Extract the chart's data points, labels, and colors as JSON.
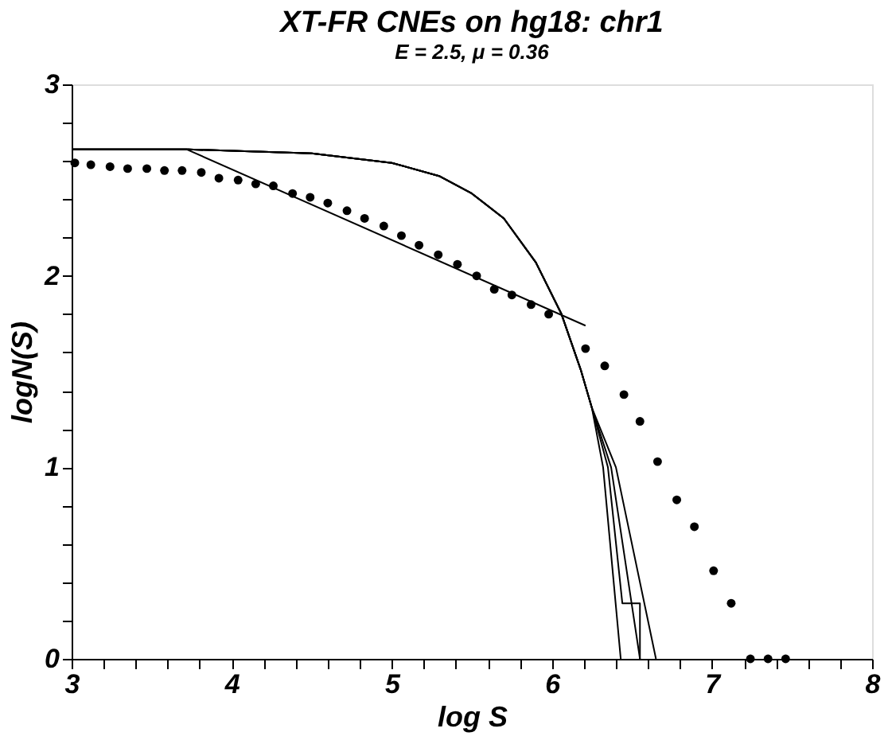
{
  "chart_data": {
    "type": "line",
    "title": "XT-FR CNEs on hg18: chr1",
    "subtitle": "E = 2.5, μ = 0.36",
    "xlabel": "log S",
    "ylabel": "logN(S)",
    "xlim": [
      3,
      8
    ],
    "ylim": [
      0,
      3
    ],
    "xticks": [
      3,
      {
        "value": 3.2,
        "label": null
      },
      {
        "value": 3.4,
        "label": null
      },
      {
        "value": 3.6,
        "label": null
      },
      {
        "value": 3.8,
        "label": null
      },
      4,
      {
        "value": 4.2,
        "label": null
      },
      {
        "value": 4.4,
        "label": null
      },
      {
        "value": 4.6,
        "label": null
      },
      {
        "value": 4.8,
        "label": null
      },
      5,
      {
        "value": 5.2,
        "label": null
      },
      {
        "value": 5.4,
        "label": null
      },
      {
        "value": 5.6,
        "label": null
      },
      {
        "value": 5.8,
        "label": null
      },
      6,
      {
        "value": 6.2,
        "label": null
      },
      {
        "value": 6.4,
        "label": null
      },
      {
        "value": 6.6,
        "label": null
      },
      {
        "value": 6.8,
        "label": null
      },
      7,
      {
        "value": 7.2,
        "label": null
      },
      {
        "value": 7.4,
        "label": null
      },
      {
        "value": 7.6,
        "label": null
      },
      {
        "value": 7.8,
        "label": null
      },
      8
    ],
    "yticks": [
      0,
      {
        "value": 0.2,
        "label": null
      },
      {
        "value": 0.4,
        "label": null
      },
      {
        "value": 0.6,
        "label": null
      },
      {
        "value": 0.8,
        "label": null
      },
      1,
      {
        "value": 1.2,
        "label": null
      },
      {
        "value": 1.4,
        "label": null
      },
      {
        "value": 1.6,
        "label": null
      },
      {
        "value": 1.8,
        "label": null
      },
      2,
      {
        "value": 2.2,
        "label": null
      },
      {
        "value": 2.4,
        "label": null
      },
      {
        "value": 2.6,
        "label": null
      },
      {
        "value": 2.8,
        "label": null
      },
      3
    ],
    "grid": false,
    "series": [
      {
        "type": "scatter",
        "marker": "circle",
        "color": "#000000",
        "x": [
          3.02,
          3.12,
          3.24,
          3.35,
          3.47,
          3.58,
          3.69,
          3.81,
          3.92,
          4.04,
          4.15,
          4.26,
          4.38,
          4.49,
          4.6,
          4.72,
          4.83,
          4.95,
          5.06,
          5.17,
          5.29,
          5.41,
          5.53,
          5.64,
          5.75,
          5.87,
          5.98,
          6.21,
          6.33,
          6.45,
          6.55,
          6.66,
          6.78,
          6.89,
          7.01,
          7.12,
          7.24,
          7.35,
          7.46
        ],
        "values": [
          2.59,
          2.58,
          2.57,
          2.56,
          2.56,
          2.55,
          2.55,
          2.54,
          2.51,
          2.5,
          2.48,
          2.47,
          2.43,
          2.41,
          2.38,
          2.34,
          2.3,
          2.26,
          2.21,
          2.16,
          2.11,
          2.06,
          2.0,
          1.93,
          1.9,
          1.85,
          1.8,
          1.62,
          1.53,
          1.38,
          1.24,
          1.03,
          0.83,
          0.69,
          0.46,
          0.29,
          0,
          0,
          0
        ]
      },
      {
        "color": "#000000",
        "x": [
          3.0,
          3.72,
          6.21
        ],
        "values": [
          2.66,
          2.66,
          1.74
        ]
      },
      {
        "color": "#000000",
        "x": [
          3.0,
          3.73,
          4.5,
          5.0,
          5.3,
          5.5,
          5.7,
          5.9,
          6.06,
          6.18,
          6.25,
          6.32,
          6.43
        ],
        "values": [
          2.66,
          2.66,
          2.64,
          2.59,
          2.52,
          2.43,
          2.3,
          2.07,
          1.8,
          1.51,
          1.31,
          1.0,
          0
        ]
      },
      {
        "color": "#000000",
        "x": [
          3.0,
          3.73,
          4.5,
          5.0,
          5.3,
          5.5,
          5.7,
          5.9,
          6.06,
          6.18,
          6.25,
          6.35,
          6.44,
          6.55,
          6.55
        ],
        "values": [
          2.66,
          2.66,
          2.64,
          2.59,
          2.52,
          2.43,
          2.3,
          2.07,
          1.8,
          1.51,
          1.31,
          1.0,
          0.29,
          0.29,
          0
        ]
      },
      {
        "color": "#000000",
        "x": [
          3.0,
          3.73,
          4.5,
          5.0,
          5.3,
          5.5,
          5.7,
          5.9,
          6.06,
          6.18,
          6.25,
          6.37,
          6.55
        ],
        "values": [
          2.66,
          2.66,
          2.64,
          2.59,
          2.52,
          2.43,
          2.3,
          2.07,
          1.8,
          1.51,
          1.31,
          1.0,
          0
        ]
      },
      {
        "color": "#000000",
        "x": [
          3.0,
          3.73,
          4.5,
          5.0,
          5.3,
          5.5,
          5.7,
          5.9,
          6.06,
          6.18,
          6.25,
          6.4,
          6.65
        ],
        "values": [
          2.66,
          2.66,
          2.64,
          2.59,
          2.52,
          2.43,
          2.3,
          2.07,
          1.8,
          1.51,
          1.31,
          1.0,
          0
        ]
      }
    ]
  }
}
